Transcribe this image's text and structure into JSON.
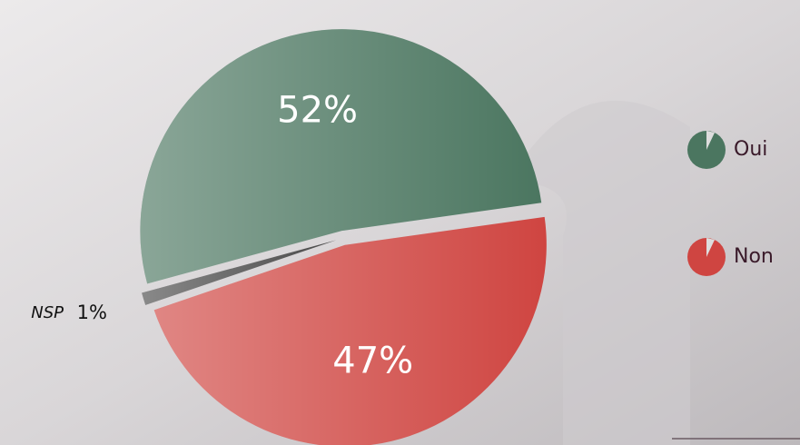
{
  "chart_data": {
    "type": "pie",
    "categories": [
      "Non",
      "NSP",
      "Oui"
    ],
    "values": [
      47,
      1,
      52
    ],
    "value_labels": [
      "47%",
      "1%",
      "52%"
    ],
    "colors": [
      "#cf4541",
      "#4a4a4a",
      "#4b7660"
    ],
    "legend": "right"
  }
}
